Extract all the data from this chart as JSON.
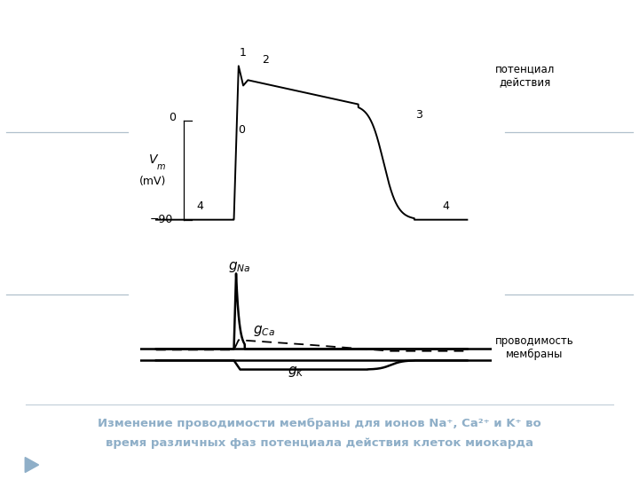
{
  "bg_color": "#ffffff",
  "title_color": "#8fafc8",
  "top_label": "потенциал\nдействия",
  "bottom_label": "проводимость\nмембраны",
  "vm_label_top": "V",
  "vm_label_sub": "m",
  "vm_label_unit": "(mV)",
  "caption_line1": "Изменение проводимости мембраны для ионов Na⁺, Ca²⁺ и K⁺ во",
  "caption_line2": "время различных фаз потенциала действия клеток миокарда",
  "separator_color": "#c0cdd8",
  "arrow_color": "#8fafc8",
  "side_line_color": "#b0c0cc"
}
